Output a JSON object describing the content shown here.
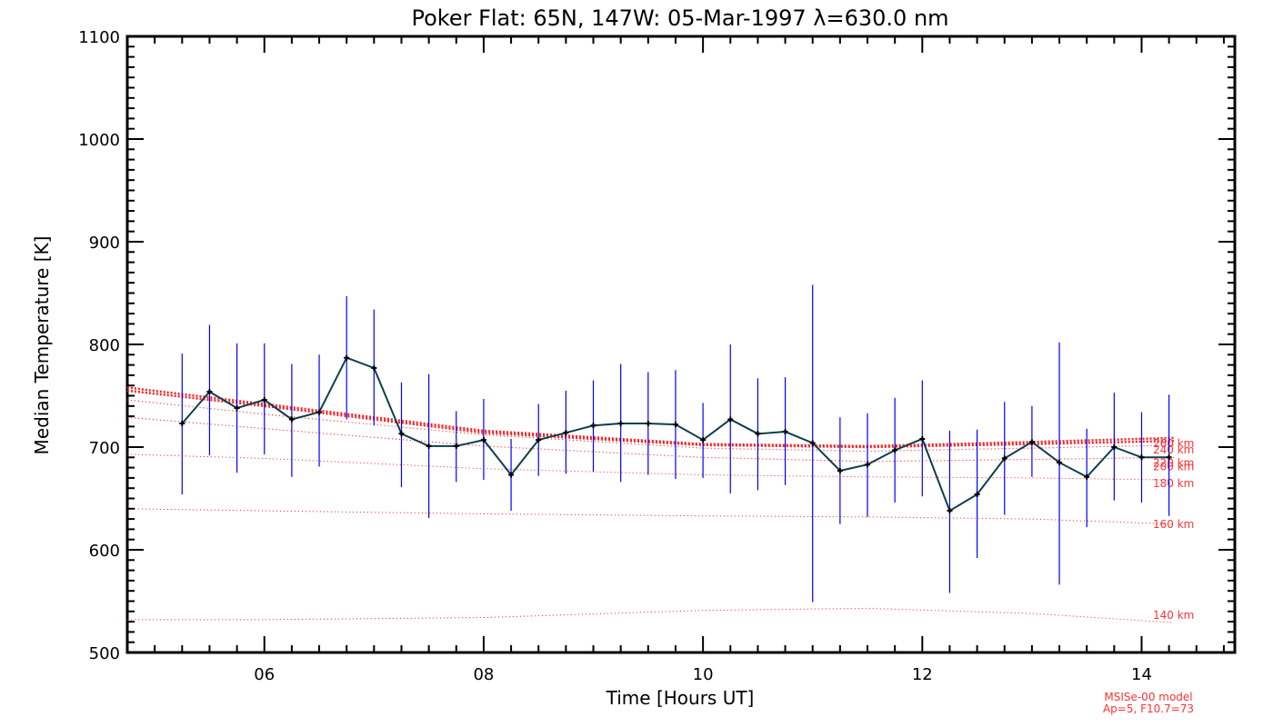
{
  "chart_data": {
    "type": "line",
    "title": "Poker Flat: 65N, 147W: 05-Mar-1997 λ=630.0 nm",
    "xlabel": "Time [Hours UT]",
    "ylabel": "Median Temperature [K]",
    "xlim": [
      4.75,
      14.85
    ],
    "ylim": [
      500,
      1100
    ],
    "x_ticks": [
      6,
      8,
      10,
      12,
      14
    ],
    "x_tick_labels": [
      "06",
      "08",
      "10",
      "12",
      "14"
    ],
    "y_ticks": [
      500,
      600,
      700,
      800,
      900,
      1000,
      1100
    ],
    "y_tick_labels": [
      "500",
      "600",
      "700",
      "800",
      "900",
      "1000",
      "1100"
    ],
    "grid": false,
    "colors": {
      "measured": "#0d3d4f",
      "error_bars": "#0000ff",
      "model": "#ff2222"
    },
    "measured": [
      {
        "t": 5.25,
        "y": 723,
        "err_lo": 654,
        "err_hi": 791
      },
      {
        "t": 5.5,
        "y": 754,
        "err_lo": 692,
        "err_hi": 819
      },
      {
        "t": 5.75,
        "y": 738,
        "err_lo": 675,
        "err_hi": 801
      },
      {
        "t": 6.0,
        "y": 746,
        "err_lo": 693,
        "err_hi": 801
      },
      {
        "t": 6.25,
        "y": 727,
        "err_lo": 671,
        "err_hi": 781
      },
      {
        "t": 6.5,
        "y": 734,
        "err_lo": 681,
        "err_hi": 790
      },
      {
        "t": 6.75,
        "y": 787,
        "err_lo": 727,
        "err_hi": 847
      },
      {
        "t": 7.0,
        "y": 777,
        "err_lo": 721,
        "err_hi": 834
      },
      {
        "t": 7.25,
        "y": 713,
        "err_lo": 661,
        "err_hi": 763
      },
      {
        "t": 7.5,
        "y": 701,
        "err_lo": 631,
        "err_hi": 771
      },
      {
        "t": 7.75,
        "y": 701,
        "err_lo": 666,
        "err_hi": 735
      },
      {
        "t": 8.0,
        "y": 707,
        "err_lo": 668,
        "err_hi": 747
      },
      {
        "t": 8.25,
        "y": 673,
        "err_lo": 638,
        "err_hi": 708
      },
      {
        "t": 8.5,
        "y": 707,
        "err_lo": 672,
        "err_hi": 742
      },
      {
        "t": 8.75,
        "y": 714,
        "err_lo": 674,
        "err_hi": 755
      },
      {
        "t": 9.0,
        "y": 721,
        "err_lo": 676,
        "err_hi": 765
      },
      {
        "t": 9.25,
        "y": 723,
        "err_lo": 666,
        "err_hi": 781
      },
      {
        "t": 9.5,
        "y": 723,
        "err_lo": 673,
        "err_hi": 773
      },
      {
        "t": 9.75,
        "y": 722,
        "err_lo": 669,
        "err_hi": 775
      },
      {
        "t": 10.0,
        "y": 707,
        "err_lo": 670,
        "err_hi": 743
      },
      {
        "t": 10.25,
        "y": 727,
        "err_lo": 655,
        "err_hi": 800
      },
      {
        "t": 10.5,
        "y": 713,
        "err_lo": 658,
        "err_hi": 767
      },
      {
        "t": 10.75,
        "y": 715,
        "err_lo": 663,
        "err_hi": 768
      },
      {
        "t": 11.0,
        "y": 704,
        "err_lo": 549,
        "err_hi": 858
      },
      {
        "t": 11.25,
        "y": 677,
        "err_lo": 625,
        "err_hi": 729
      },
      {
        "t": 11.5,
        "y": 683,
        "err_lo": 632,
        "err_hi": 733
      },
      {
        "t": 11.75,
        "y": 697,
        "err_lo": 646,
        "err_hi": 748
      },
      {
        "t": 12.0,
        "y": 708,
        "err_lo": 652,
        "err_hi": 765
      },
      {
        "t": 12.25,
        "y": 638,
        "err_lo": 558,
        "err_hi": 716
      },
      {
        "t": 12.5,
        "y": 654,
        "err_lo": 592,
        "err_hi": 717
      },
      {
        "t": 12.75,
        "y": 689,
        "err_lo": 634,
        "err_hi": 744
      },
      {
        "t": 13.0,
        "y": 705,
        "err_lo": 671,
        "err_hi": 740
      },
      {
        "t": 13.25,
        "y": 685,
        "err_lo": 566,
        "err_hi": 802
      },
      {
        "t": 13.5,
        "y": 671,
        "err_lo": 622,
        "err_hi": 718
      },
      {
        "t": 13.75,
        "y": 700,
        "err_lo": 648,
        "err_hi": 753
      },
      {
        "t": 14.0,
        "y": 690,
        "err_lo": 646,
        "err_hi": 734
      },
      {
        "t": 14.25,
        "y": 690,
        "err_lo": 633,
        "err_hi": 751
      }
    ],
    "model_lines": [
      {
        "label": "140 km",
        "x": [
          4.75,
          6.0,
          8.0,
          10.0,
          11.5,
          13.0,
          14.3
        ],
        "y": [
          532,
          532,
          534,
          541,
          543,
          538,
          529
        ]
      },
      {
        "label": "160 km",
        "x": [
          4.75,
          6.0,
          8.0,
          10.0,
          11.5,
          13.0,
          14.3
        ],
        "y": [
          640,
          638,
          635,
          633,
          632,
          630,
          625
        ]
      },
      {
        "label": "180 km",
        "x": [
          4.75,
          6.0,
          8.0,
          10.0,
          11.5,
          13.0,
          14.3
        ],
        "y": [
          693,
          689,
          679,
          673,
          671,
          670,
          668
        ]
      },
      {
        "label": "200 km",
        "x": [
          4.75,
          6.0,
          8.0,
          10.0,
          11.5,
          13.0,
          14.3
        ],
        "y": [
          729,
          718,
          701,
          690,
          686,
          688,
          690
        ]
      },
      {
        "label": "220 km",
        "x": [
          4.75,
          6.0,
          8.0,
          10.0,
          11.5,
          13.0,
          14.3
        ],
        "y": [
          746,
          732,
          712,
          699,
          696,
          699,
          702
        ]
      },
      {
        "label": "240 km",
        "x": [
          4.75,
          6.0,
          8.0,
          10.0,
          11.5,
          13.0,
          14.3
        ],
        "y": [
          755,
          740,
          714,
          702,
          700,
          703,
          706
        ]
      },
      {
        "label": "260 km",
        "x": [
          4.75,
          6.0,
          8.0,
          10.0,
          11.5,
          13.0,
          14.3
        ],
        "y": [
          758,
          742,
          716,
          703,
          701,
          705,
          709
        ]
      }
    ],
    "model_labels": [
      "260 km",
      "240 km",
      "220 km",
      "200 km",
      "180 km",
      "160 km",
      "140 km"
    ],
    "model_note_lines": [
      "MSISe-00 model",
      "Ap=5, F10.7=73"
    ]
  }
}
